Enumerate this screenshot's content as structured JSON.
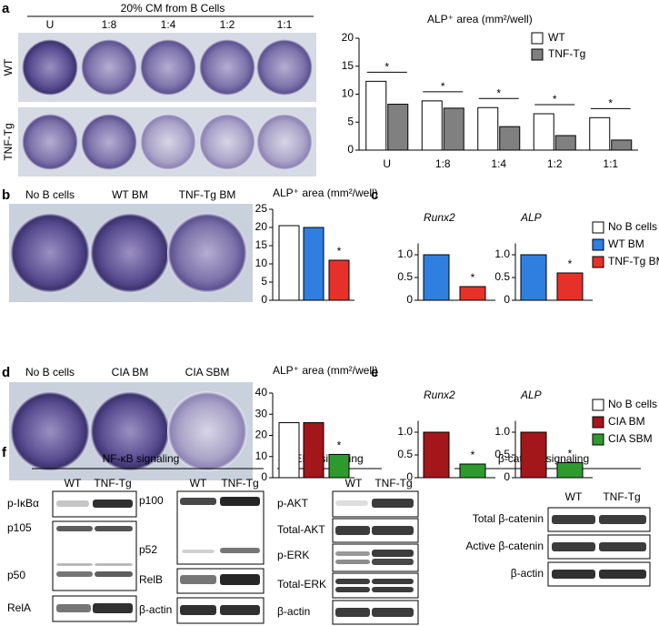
{
  "chart_data": [
    {
      "type": "bar",
      "title": "ALP⁺ area (mm²/well)",
      "categories": [
        "U",
        "1:8",
        "1:4",
        "1:2",
        "1:1"
      ],
      "series": [
        {
          "name": "WT",
          "color": "#ffffff",
          "values": [
            12.3,
            8.8,
            7.6,
            6.5,
            5.8
          ]
        },
        {
          "name": "TNF-Tg",
          "color": "#808080",
          "values": [
            8.2,
            7.5,
            4.2,
            2.6,
            1.8
          ]
        }
      ],
      "ylim": [
        0,
        20
      ],
      "yticks": [
        0,
        5,
        10,
        15,
        20
      ],
      "annotations": [
        "*",
        "*",
        "*",
        "*",
        "*"
      ]
    },
    {
      "type": "bar",
      "title": "ALP⁺ area (mm²/well)",
      "categories": [
        "No B cells",
        "WT BM",
        "TNF-Tg BM"
      ],
      "values": [
        20.5,
        20,
        11
      ],
      "colors": [
        "#ffffff",
        "#2f7fe0",
        "#e8302a"
      ],
      "ylim": [
        0,
        25
      ],
      "yticks": [
        0,
        5,
        10,
        15,
        20,
        25
      ],
      "annotations": [
        null,
        null,
        "*"
      ]
    },
    {
      "type": "bar",
      "title": "Runx2",
      "values": [
        1.0,
        0.3
      ],
      "colors": [
        "#2f7fe0",
        "#e8302a"
      ],
      "ylim": [
        0,
        1.25
      ],
      "yticks": [
        0,
        0.5,
        {
          "value": 1,
          "label": "1.0"
        }
      ],
      "annotations": [
        null,
        "*"
      ]
    },
    {
      "type": "bar",
      "title": "ALP",
      "values": [
        1.0,
        0.6
      ],
      "colors": [
        "#2f7fe0",
        "#e8302a"
      ],
      "ylim": [
        0,
        1.25
      ],
      "yticks": [
        0,
        0.5,
        {
          "value": 1,
          "label": "1.0"
        }
      ],
      "annotations": [
        null,
        "*"
      ]
    },
    {
      "type": "bar",
      "title": "ALP⁺ area (mm²/well)",
      "categories": [
        "No B cells",
        "CIA BM",
        "CIA SBM"
      ],
      "values": [
        26,
        26,
        11
      ],
      "colors": [
        "#ffffff",
        "#a3161a",
        "#2e9a2e"
      ],
      "ylim": [
        0,
        40
      ],
      "yticks": [
        0,
        10,
        20,
        30,
        40
      ],
      "annotations": [
        null,
        null,
        "*"
      ]
    },
    {
      "type": "bar",
      "title": "Runx2",
      "values": [
        1.0,
        0.3
      ],
      "colors": [
        "#a3161a",
        "#2e9a2e"
      ],
      "ylim": [
        0,
        1.25
      ],
      "yticks": [
        0,
        0.5,
        {
          "value": 1,
          "label": "1.0"
        }
      ],
      "annotations": [
        null,
        "*"
      ]
    },
    {
      "type": "bar",
      "title": "ALP",
      "values": [
        1.0,
        0.33
      ],
      "colors": [
        "#a3161a",
        "#2e9a2e"
      ],
      "ylim": [
        0,
        1.25
      ],
      "yticks": [
        0,
        0.5,
        {
          "value": 1,
          "label": "1.0"
        }
      ],
      "annotations": [
        null,
        "*"
      ]
    }
  ],
  "panels": {
    "a": {
      "letter": "a",
      "header": "20% CM from B Cells",
      "columns": [
        "U",
        "1:8",
        "1:4",
        "1:2",
        "1:1"
      ],
      "rows": [
        "WT",
        "TNF-Tg"
      ]
    },
    "b": {
      "letter": "b"
    },
    "c": {
      "letter": "c",
      "legend": [
        {
          "name": "No B cells",
          "color": "#ffffff"
        },
        {
          "name": "WT BM",
          "color": "#2f7fe0"
        },
        {
          "name": "TNF-Tg BM",
          "color": "#e8302a"
        }
      ]
    },
    "d": {
      "letter": "d"
    },
    "e": {
      "letter": "e",
      "legend": [
        {
          "name": "No B cells",
          "color": "#ffffff"
        },
        {
          "name": "CIA BM",
          "color": "#a3161a"
        },
        {
          "name": "CIA SBM",
          "color": "#2e9a2e"
        }
      ]
    },
    "f": {
      "letter": "f",
      "groups": [
        {
          "title": "NF-κB signaling",
          "lanes": [
            "WT",
            "TNF-Tg",
            "WT",
            "TNF-Tg"
          ],
          "proteins": [
            "p-IκBα",
            "p105",
            "p50",
            "RelA",
            "p100",
            "p52",
            "RelB",
            "β-actin"
          ]
        },
        {
          "title": "ERK signaling",
          "lanes": [
            "WT",
            "TNF-Tg"
          ],
          "proteins": [
            "p-AKT",
            "Total-AKT",
            "p-ERK",
            "Total-ERK",
            "β-actin"
          ]
        },
        {
          "title": "β-catenin signaling",
          "lanes": [
            "WT",
            "TNF-Tg"
          ],
          "proteins": [
            "Total β-catenin",
            "Active β-catenin",
            "β-actin"
          ]
        }
      ]
    }
  }
}
